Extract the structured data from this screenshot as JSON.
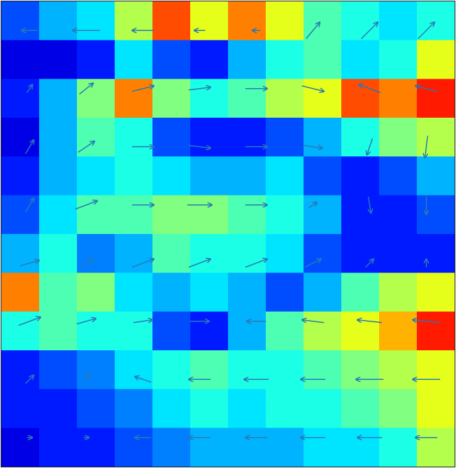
{
  "chart_data": {
    "type": "heatmap",
    "colormap": "jet",
    "zlim": [
      0,
      1
    ],
    "z": [
      [
        0.2,
        0.3,
        0.35,
        0.55,
        0.8,
        0.6,
        0.75,
        0.6,
        0.45,
        0.4,
        0.35,
        0.4
      ],
      [
        0.1,
        0.1,
        0.15,
        0.35,
        0.2,
        0.15,
        0.3,
        0.4,
        0.45,
        0.35,
        0.4,
        0.6
      ],
      [
        0.15,
        0.3,
        0.5,
        0.75,
        0.5,
        0.4,
        0.45,
        0.55,
        0.6,
        0.8,
        0.75,
        0.85
      ],
      [
        0.1,
        0.3,
        0.45,
        0.4,
        0.2,
        0.15,
        0.15,
        0.2,
        0.3,
        0.4,
        0.5,
        0.55
      ],
      [
        0.15,
        0.3,
        0.35,
        0.4,
        0.35,
        0.3,
        0.3,
        0.35,
        0.2,
        0.15,
        0.2,
        0.3
      ],
      [
        0.2,
        0.35,
        0.45,
        0.45,
        0.5,
        0.5,
        0.45,
        0.4,
        0.3,
        0.15,
        0.15,
        0.2
      ],
      [
        0.3,
        0.4,
        0.25,
        0.3,
        0.45,
        0.4,
        0.4,
        0.35,
        0.2,
        0.15,
        0.15,
        0.15
      ],
      [
        0.75,
        0.45,
        0.5,
        0.35,
        0.3,
        0.35,
        0.3,
        0.2,
        0.3,
        0.45,
        0.55,
        0.6
      ],
      [
        0.4,
        0.45,
        0.4,
        0.4,
        0.2,
        0.15,
        0.3,
        0.45,
        0.55,
        0.6,
        0.7,
        0.85
      ],
      [
        0.15,
        0.2,
        0.25,
        0.35,
        0.4,
        0.45,
        0.4,
        0.4,
        0.45,
        0.5,
        0.55,
        0.6
      ],
      [
        0.15,
        0.15,
        0.2,
        0.25,
        0.35,
        0.4,
        0.35,
        0.4,
        0.4,
        0.45,
        0.5,
        0.6
      ],
      [
        0.1,
        0.15,
        0.15,
        0.2,
        0.25,
        0.3,
        0.3,
        0.3,
        0.35,
        0.35,
        0.4,
        0.55
      ]
    ],
    "quiver": {
      "color": "#2a78b5",
      "u": [
        [
          -0.6,
          -1,
          -0.8,
          -0.4,
          -0.3,
          0.5,
          0.6,
          0.6
        ],
        [
          0.2,
          0.5,
          0.8,
          0.8,
          0.8,
          0.8,
          -0.8,
          -0.8
        ],
        [
          0.3,
          0.6,
          0.8,
          0.8,
          0.8,
          0.7,
          -0.2,
          -0.1
        ],
        [
          0.3,
          0.8,
          0.8,
          0.9,
          0.8,
          0.3,
          0.1,
          0
        ],
        [
          0.7,
          0.5,
          0.8,
          0.8,
          0.8,
          0.6,
          0.3,
          0
        ],
        [
          0.8,
          0.7,
          0.7,
          0.7,
          -0.7,
          -0.8,
          -0.9,
          -1
        ],
        [
          0.3,
          0.2,
          -0.6,
          -0.8,
          -0.9,
          -0.9,
          -1,
          -1
        ],
        [
          0.2,
          0.2,
          -0.6,
          -0.8,
          -0.8,
          -0.9,
          -0.9,
          -0.8
        ]
      ],
      "v": [
        [
          0,
          0,
          0,
          0,
          0,
          0.6,
          0.6,
          0.6
        ],
        [
          0.3,
          0.4,
          0.2,
          0.1,
          0,
          -0.2,
          0.3,
          0.2
        ],
        [
          0.5,
          0.4,
          0,
          -0.1,
          0,
          -0.1,
          -0.6,
          -0.8
        ],
        [
          0.5,
          0.3,
          0,
          0,
          0,
          0.2,
          -0.6,
          -0.7
        ],
        [
          0.2,
          0.3,
          0.3,
          0.3,
          0.3,
          0.3,
          0.3,
          0.3
        ],
        [
          0.3,
          0.2,
          0.1,
          0,
          0,
          0.1,
          0.1,
          0.1
        ],
        [
          0.3,
          0.5,
          0.2,
          0,
          0,
          0,
          0,
          0
        ],
        [
          0,
          0,
          0,
          0,
          0,
          0,
          0,
          0
        ]
      ]
    }
  }
}
